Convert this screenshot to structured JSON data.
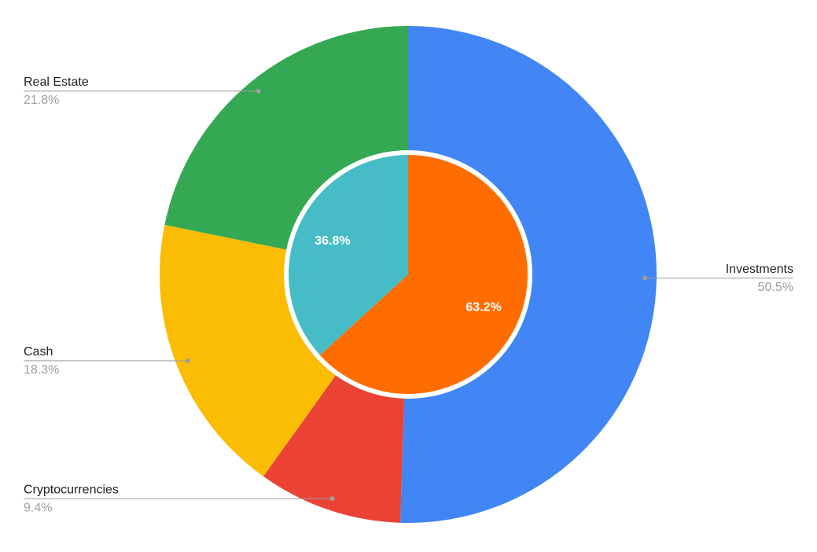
{
  "chart_data": {
    "type": "pie",
    "outer": {
      "categories": [
        "Investments",
        "Cryptocurrencies",
        "Cash",
        "Real Estate"
      ],
      "values": [
        50.5,
        9.4,
        18.3,
        21.8
      ],
      "value_labels": [
        "50.5%",
        "9.4%",
        "18.3%",
        "21.8%"
      ],
      "colors": [
        "#4285f4",
        "#ea4335",
        "#fbbc04",
        "#34a853"
      ]
    },
    "inner": {
      "values": [
        63.2,
        36.8
      ],
      "value_labels": [
        "63.2%",
        "36.8%"
      ],
      "colors": [
        "#ff6d01",
        "#46bdc6"
      ]
    }
  }
}
